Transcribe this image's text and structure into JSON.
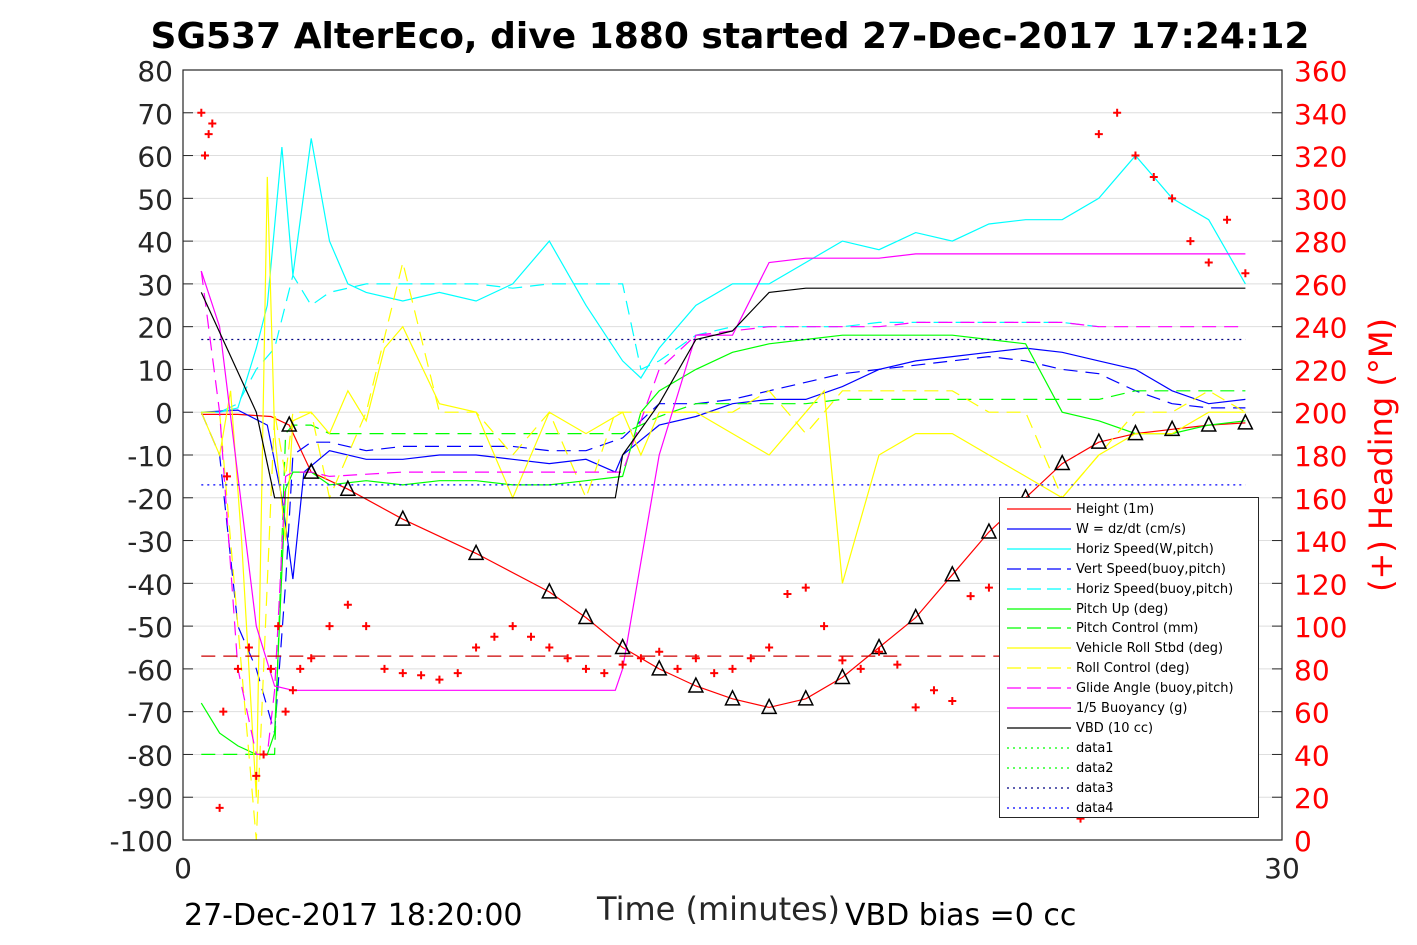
{
  "title": "SG537 AlterEco, dive 1880 started 27-Dec-2017 17:24:12",
  "footer_left": "27-Dec-2017 18:20:00",
  "footer_right": "VBD bias =0 cc",
  "chart_data": {
    "type": "line",
    "xlabel": "Time (minutes)",
    "ylabel": "",
    "y2label": "(+) Heading (°M)",
    "xlim": [
      0,
      30
    ],
    "ylim": [
      -100,
      80
    ],
    "y2lim": [
      0,
      360
    ],
    "xticks": [
      "0",
      "30"
    ],
    "yticks": [
      "80",
      "70",
      "60",
      "50",
      "40",
      "30",
      "20",
      "10",
      "0",
      "-10",
      "-20",
      "-30",
      "-40",
      "-50",
      "-60",
      "-70",
      "-80",
      "-90",
      "-100"
    ],
    "y2ticks": [
      "360",
      "340",
      "320",
      "300",
      "280",
      "260",
      "240",
      "220",
      "200",
      "180",
      "160",
      "140",
      "120",
      "100",
      "80",
      "60",
      "40",
      "20",
      "0"
    ],
    "grid": true,
    "legend_position": "bottom-right",
    "colors": {
      "height": "#ff0000",
      "w": "#0000ff",
      "horiz_w": "#00ffff",
      "vert_buoy": "#0000ff",
      "horiz_buoy": "#00ffff",
      "pitch": "#00ff00",
      "pitch_ctrl": "#00ff00",
      "roll": "#ffff00",
      "roll_ctrl": "#ffff00",
      "glide": "#ff00ff",
      "buoy": "#ff00ff",
      "vbd": "#000000",
      "heading": "#ff0000",
      "right_axis": "#ff0000"
    },
    "legend": [
      {
        "label": "Height (1m)",
        "color": "#ff0000",
        "style": "solid"
      },
      {
        "label": "W = dz/dt (cm/s)",
        "color": "#0000ff",
        "style": "solid"
      },
      {
        "label": "Horiz Speed(W,pitch)",
        "color": "#00ffff",
        "style": "solid"
      },
      {
        "label": "Vert Speed(buoy,pitch)",
        "color": "#0000ff",
        "style": "dashed"
      },
      {
        "label": "Horiz Speed(buoy,pitch)",
        "color": "#00ffff",
        "style": "dashed"
      },
      {
        "label": "Pitch Up (deg)",
        "color": "#00ff00",
        "style": "solid"
      },
      {
        "label": "Pitch Control (mm)",
        "color": "#00ff00",
        "style": "dashed"
      },
      {
        "label": "Vehicle Roll Stbd (deg)",
        "color": "#ffff00",
        "style": "solid"
      },
      {
        "label": "Roll Control (deg)",
        "color": "#ffff00",
        "style": "dashed"
      },
      {
        "label": "Glide Angle (buoy,pitch)",
        "color": "#ff00ff",
        "style": "dashed"
      },
      {
        "label": "1/5 Buoyancy (g)",
        "color": "#ff00ff",
        "style": "solid"
      },
      {
        "label": "VBD (10 cc)",
        "color": "#000000",
        "style": "solid"
      },
      {
        "label": "data1",
        "color": "#00ff00",
        "style": "dotted"
      },
      {
        "label": "data2",
        "color": "#00ff00",
        "style": "dotted"
      },
      {
        "label": "data3",
        "color": "#000080",
        "style": "dotted"
      },
      {
        "label": "data4",
        "color": "#0000ff",
        "style": "dotted"
      }
    ],
    "series": [
      {
        "key": "height",
        "x": [
          0.5,
          1.5,
          2.4,
          2.9,
          3.5,
          4.5,
          6,
          8,
          10,
          11,
          12,
          13,
          14,
          15,
          16,
          17,
          18,
          19,
          20,
          21,
          22,
          23,
          24,
          25,
          26,
          27,
          28,
          29,
          26.5
        ],
        "y": [
          -0.5,
          -0.5,
          -1,
          -3,
          -14,
          -18,
          -25,
          -33,
          -42,
          -48,
          -55,
          -60,
          -64,
          -67,
          -69,
          -67,
          -62,
          -55,
          -48,
          -38,
          -28,
          -20,
          -12,
          -7,
          -5,
          -4,
          -3,
          -2.5,
          -4
        ]
      },
      {
        "key": "w",
        "x": [
          0.5,
          1.5,
          2.3,
          2.7,
          3.0,
          3.3,
          4,
          5,
          6,
          7,
          8,
          9,
          10,
          11,
          11.8,
          12,
          13,
          14,
          15,
          16,
          17,
          18,
          19,
          20,
          21,
          22,
          23,
          24,
          25,
          26,
          27,
          28,
          29
        ],
        "y": [
          0,
          0.5,
          -3,
          -20,
          -39,
          -14,
          -9,
          -11,
          -11,
          -10,
          -10,
          -11,
          -12,
          -11,
          -14,
          -10,
          -3,
          -1,
          2,
          3,
          3,
          6,
          10,
          12,
          13,
          14,
          15,
          14,
          12,
          10,
          5,
          2,
          3
        ]
      },
      {
        "key": "horiz_w",
        "x": [
          0.5,
          1,
          1.5,
          2,
          2.3,
          2.7,
          3.0,
          3.5,
          4,
          4.5,
          5,
          6,
          7,
          8,
          9,
          9.5,
          10,
          11,
          12,
          12.5,
          13,
          14,
          15,
          16,
          17,
          18,
          19,
          20,
          21,
          22,
          23,
          24,
          25,
          26,
          27,
          28,
          29
        ],
        "y": [
          0,
          0,
          1,
          15,
          25,
          62,
          32,
          64,
          40,
          30,
          28,
          26,
          28,
          26,
          30,
          35,
          40,
          25,
          12,
          8,
          15,
          25,
          30,
          30,
          35,
          40,
          38,
          42,
          40,
          44,
          45,
          45,
          50,
          60,
          50,
          45,
          30
        ]
      },
      {
        "key": "vert_buoy",
        "x": [
          0.5,
          1,
          1.5,
          2,
          2.5,
          2.8,
          3,
          3.5,
          4,
          5,
          6,
          7,
          8,
          9,
          10,
          11,
          12,
          13,
          14,
          15,
          16,
          17,
          18,
          19,
          20,
          21,
          22,
          23,
          24,
          25,
          26,
          27,
          28,
          29
        ],
        "y": [
          0,
          -10,
          -50,
          -60,
          -75,
          -40,
          -10,
          -7,
          -7,
          -9,
          -8,
          -8,
          -8,
          -8,
          -9,
          -9,
          -6,
          2,
          2,
          3,
          5,
          7,
          9,
          10,
          11,
          12,
          13,
          12,
          10,
          9,
          5,
          2,
          1,
          1
        ]
      },
      {
        "key": "horiz_buoy",
        "x": [
          0.5,
          1,
          1.5,
          2,
          2.5,
          3,
          3.5,
          4,
          5,
          6,
          7,
          8,
          9,
          10,
          11,
          12,
          12.5,
          13,
          14,
          15,
          16,
          17,
          18,
          19,
          20,
          21,
          22,
          23,
          24,
          25
        ],
        "y": [
          0,
          0,
          2,
          10,
          15,
          32,
          25,
          28,
          30,
          30,
          30,
          30,
          29,
          30,
          30,
          30,
          10,
          12,
          18,
          20,
          20,
          20,
          20,
          21,
          21,
          21,
          21,
          21,
          21,
          20
        ]
      },
      {
        "key": "pitch",
        "x": [
          0.5,
          1,
          1.5,
          2,
          2.3,
          2.5,
          2.8,
          3.0,
          3.5,
          4,
          5,
          6,
          7,
          8,
          9,
          10,
          11,
          12,
          12.5,
          13,
          14,
          15,
          16,
          17,
          18,
          19,
          20,
          21,
          22,
          23,
          24,
          25,
          26,
          27,
          28,
          29
        ],
        "y": [
          -68,
          -75,
          -78,
          -80,
          -80,
          -75,
          -18,
          -14,
          -14,
          -17,
          -16,
          -17,
          -16,
          -16,
          -17,
          -17,
          -16,
          -15,
          0,
          5,
          10,
          14,
          16,
          17,
          18,
          18,
          18,
          18,
          17,
          16,
          0,
          -2,
          -5,
          -5,
          -3,
          -2
        ]
      },
      {
        "key": "pitch_ctrl",
        "x": [
          0.5,
          2.5,
          2.8,
          3.0,
          3.5,
          4,
          6,
          8,
          10,
          11.8,
          12,
          13,
          14,
          15,
          16,
          17,
          18,
          19,
          20,
          21,
          22,
          23,
          24,
          25,
          26,
          27,
          28,
          29
        ],
        "y": [
          -80,
          -80,
          -5,
          -3,
          -3,
          -5,
          -5,
          -5,
          -5,
          -5,
          -5,
          -1,
          2,
          2,
          2,
          2,
          3,
          3,
          3,
          3,
          3,
          3,
          3,
          3,
          5,
          5,
          5,
          5
        ]
      },
      {
        "key": "roll",
        "x": [
          0.5,
          1,
          1.3,
          1.6,
          2,
          2.3,
          2.5,
          2.8,
          3.0,
          3.5,
          4,
          4.5,
          5,
          5.5,
          6,
          7,
          8,
          8.5,
          9,
          10,
          11,
          12,
          12.5,
          13,
          14,
          15,
          16,
          17,
          17.5,
          18,
          19,
          20,
          21,
          22,
          23,
          24,
          25,
          26,
          27,
          28,
          29
        ],
        "y": [
          0,
          -10,
          5,
          -30,
          -90,
          55,
          -5,
          -30,
          -2,
          0,
          -5,
          5,
          -2,
          15,
          20,
          2,
          0,
          -10,
          -20,
          0,
          -5,
          0,
          -10,
          0,
          0,
          -5,
          -10,
          0,
          5,
          -40,
          -10,
          -5,
          -5,
          -10,
          -15,
          -20,
          -10,
          -5,
          -5,
          0,
          0
        ]
      },
      {
        "key": "roll_ctrl",
        "x": [
          0.5,
          1,
          1.5,
          2,
          2.5,
          2.8,
          3.0,
          3.5,
          4,
          5,
          6,
          7,
          8,
          9,
          10,
          11,
          11.8,
          12,
          13,
          14,
          15,
          16,
          17,
          18,
          19,
          20,
          21,
          22,
          23,
          24,
          25,
          26,
          27,
          28,
          29
        ],
        "y": [
          0,
          0,
          -50,
          -100,
          0,
          -15,
          0,
          0,
          -20,
          0,
          35,
          0,
          0,
          -10,
          0,
          -20,
          0,
          0,
          0,
          0,
          0,
          5,
          -5,
          5,
          5,
          5,
          5,
          0,
          0,
          -20,
          -10,
          0,
          0,
          5,
          0
        ]
      },
      {
        "key": "glide",
        "x": [
          0.5,
          1,
          1.5,
          2,
          2.3,
          2.5,
          2.8,
          3.0,
          3.5,
          4,
          6,
          8,
          10,
          11.8,
          12,
          13,
          14,
          15,
          16,
          17,
          18,
          19,
          20,
          21,
          22,
          23,
          24,
          25,
          26,
          27,
          28,
          29
        ],
        "y": [
          33,
          0,
          -60,
          -80,
          -80,
          -65,
          -15,
          -14,
          -14,
          -15,
          -14,
          -14,
          -14,
          -14,
          -14,
          10,
          18,
          19,
          20,
          20,
          20,
          20,
          21,
          21,
          21,
          21,
          21,
          20,
          20,
          20,
          20,
          20
        ]
      },
      {
        "key": "buoy",
        "x": [
          0.5,
          1,
          2,
          2.5,
          3,
          4,
          6,
          8,
          10,
          11.8,
          12,
          13,
          14,
          15,
          16,
          17,
          18,
          19,
          20,
          21,
          22,
          23,
          24,
          25,
          26,
          27,
          28,
          29
        ],
        "y": [
          33,
          20,
          -50,
          -64,
          -65,
          -65,
          -65,
          -65,
          -65,
          -65,
          -60,
          -10,
          18,
          18,
          35,
          36,
          36,
          36,
          37,
          37,
          37,
          37,
          37,
          37,
          37,
          37,
          37,
          37
        ]
      },
      {
        "key": "vbd",
        "x": [
          0.5,
          2,
          2.5,
          3,
          3.5,
          4,
          6,
          8,
          10,
          11.8,
          12,
          13,
          14,
          15,
          16,
          17,
          18,
          19,
          20,
          21,
          22,
          23,
          24,
          25,
          26,
          27,
          28,
          29
        ],
        "y": [
          28,
          0,
          -20,
          -20,
          -20,
          -20,
          -20,
          -20,
          -20,
          -20,
          -10,
          2,
          17,
          19,
          28,
          29,
          29,
          29,
          29,
          29,
          29,
          29,
          29,
          29,
          29,
          29,
          29,
          29
        ]
      },
      {
        "key": "data3",
        "x": [
          0.5,
          29
        ],
        "y": [
          17,
          17
        ]
      },
      {
        "key": "data4",
        "x": [
          0.5,
          29
        ],
        "y": [
          -17,
          -17
        ]
      },
      {
        "key": "data_red_dash",
        "x": [
          0.5,
          29
        ],
        "y": [
          -57,
          -57
        ]
      }
    ],
    "heading": {
      "x": [
        0.5,
        0.6,
        0.7,
        0.8,
        1.0,
        1.1,
        1.2,
        1.5,
        1.8,
        2.0,
        2.2,
        2.4,
        2.6,
        2.8,
        3.0,
        3.2,
        3.5,
        4,
        4.5,
        5,
        5.5,
        6,
        6.5,
        7,
        7.5,
        8,
        8.5,
        9,
        9.5,
        10,
        10.5,
        11,
        11.5,
        12,
        12.5,
        13,
        13.5,
        14,
        14.5,
        15,
        15.5,
        16,
        16.5,
        17,
        17.5,
        18,
        18.5,
        19,
        19.5,
        20,
        20.5,
        21,
        21.5,
        22,
        22.5,
        23,
        23.5,
        24,
        24.5,
        25,
        25.5,
        26,
        26.5,
        27,
        27.5,
        28,
        28.5,
        29
      ],
      "y": [
        340,
        320,
        330,
        335,
        15,
        60,
        170,
        80,
        90,
        30,
        40,
        80,
        100,
        60,
        70,
        80,
        85,
        100,
        110,
        100,
        80,
        78,
        77,
        75,
        78,
        90,
        95,
        100,
        95,
        90,
        85,
        80,
        78,
        82,
        85,
        88,
        80,
        85,
        78,
        80,
        85,
        90,
        115,
        118,
        100,
        84,
        80,
        88,
        82,
        62,
        70,
        65,
        114,
        118,
        105,
        90,
        84,
        60,
        10,
        330,
        340,
        320,
        310,
        300,
        280,
        270,
        290,
        265
      ]
    }
  }
}
